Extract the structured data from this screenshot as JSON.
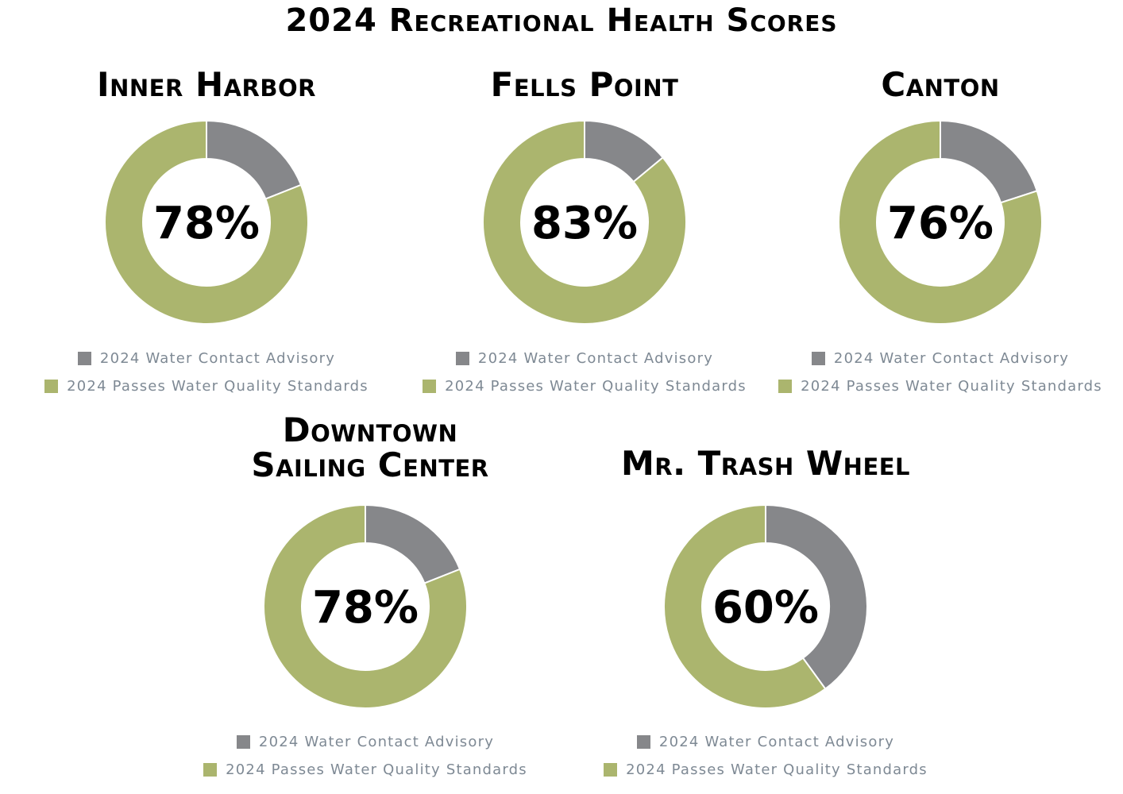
{
  "title": "2024 Recreational Health Scores",
  "colors": {
    "advisory": "#86878a",
    "passes": "#abb56e"
  },
  "chart_data": [
    {
      "type": "pie",
      "title": "Inner Harbor",
      "center_label": "78%",
      "categories": [
        "2024 Water Contact Advisory",
        "2024 Passes Water Quality Standards"
      ],
      "values": [
        0.19,
        0.81
      ]
    },
    {
      "type": "pie",
      "title": "Fells Point",
      "center_label": "83%",
      "categories": [
        "2024 Water Contact Advisory",
        "2024 Passes Water Quality Standards"
      ],
      "values": [
        0.14,
        0.86
      ]
    },
    {
      "type": "pie",
      "title": "Canton",
      "center_label": "76%",
      "categories": [
        "2024 Water Contact Advisory",
        "2024 Passes Water Quality Standards"
      ],
      "values": [
        0.2,
        0.8
      ]
    },
    {
      "type": "pie",
      "title": "Downtown Sailing Center",
      "center_label": "78%",
      "categories": [
        "2024 Water Contact Advisory",
        "2024 Passes Water Quality Standards"
      ],
      "values": [
        0.19,
        0.81
      ]
    },
    {
      "type": "pie",
      "title": "Mr. Trash Wheel",
      "center_label": "60%",
      "categories": [
        "2024 Water Contact Advisory",
        "2024 Passes Water Quality Standards"
      ],
      "values": [
        0.4,
        0.6
      ]
    }
  ]
}
